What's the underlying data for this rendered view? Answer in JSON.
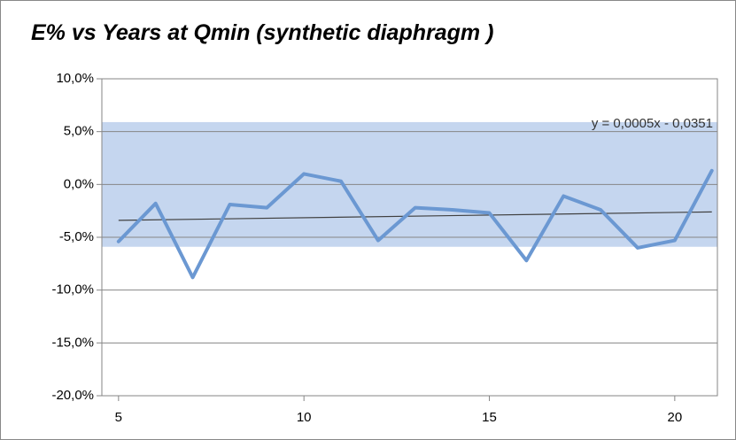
{
  "chart_data": {
    "type": "line",
    "title": "E% vs Years at Qmin (synthetic diaphragm )",
    "x": [
      5,
      6,
      7,
      8,
      9,
      10,
      11,
      12,
      13,
      14,
      15,
      16,
      17,
      18,
      19,
      20,
      21
    ],
    "series": [
      {
        "name": "E%",
        "color": "#6b98d2",
        "values": [
          -5.4,
          -1.8,
          -8.8,
          -1.9,
          -2.2,
          1.0,
          0.3,
          -5.3,
          -2.2,
          -2.4,
          -2.7,
          -7.2,
          -1.1,
          -2.4,
          -6.0,
          -5.3,
          1.3
        ]
      }
    ],
    "trendline": {
      "label": "y = 0,0005x - 0,0351",
      "x": [
        5,
        21
      ],
      "values": [
        -3.4,
        -2.6
      ],
      "color": "#404040"
    },
    "band": {
      "values": [
        -5.9,
        5.9
      ],
      "color": "#c5d6ef"
    },
    "xlim": [
      4.55,
      21.15
    ],
    "xticks": [
      5,
      10,
      15,
      20
    ],
    "ylim": [
      -20,
      10
    ],
    "yticks": [
      {
        "value": -20,
        "label": "-20,0%"
      },
      {
        "value": -15,
        "label": "-15,0%"
      },
      {
        "value": -10,
        "label": "-10,0%"
      },
      {
        "value": -5,
        "label": "-5,0%"
      },
      {
        "value": 0,
        "label": "0,0%"
      },
      {
        "value": 5,
        "label": "5,0%"
      },
      {
        "value": 10,
        "label": "10,0%"
      }
    ],
    "grid": true
  }
}
